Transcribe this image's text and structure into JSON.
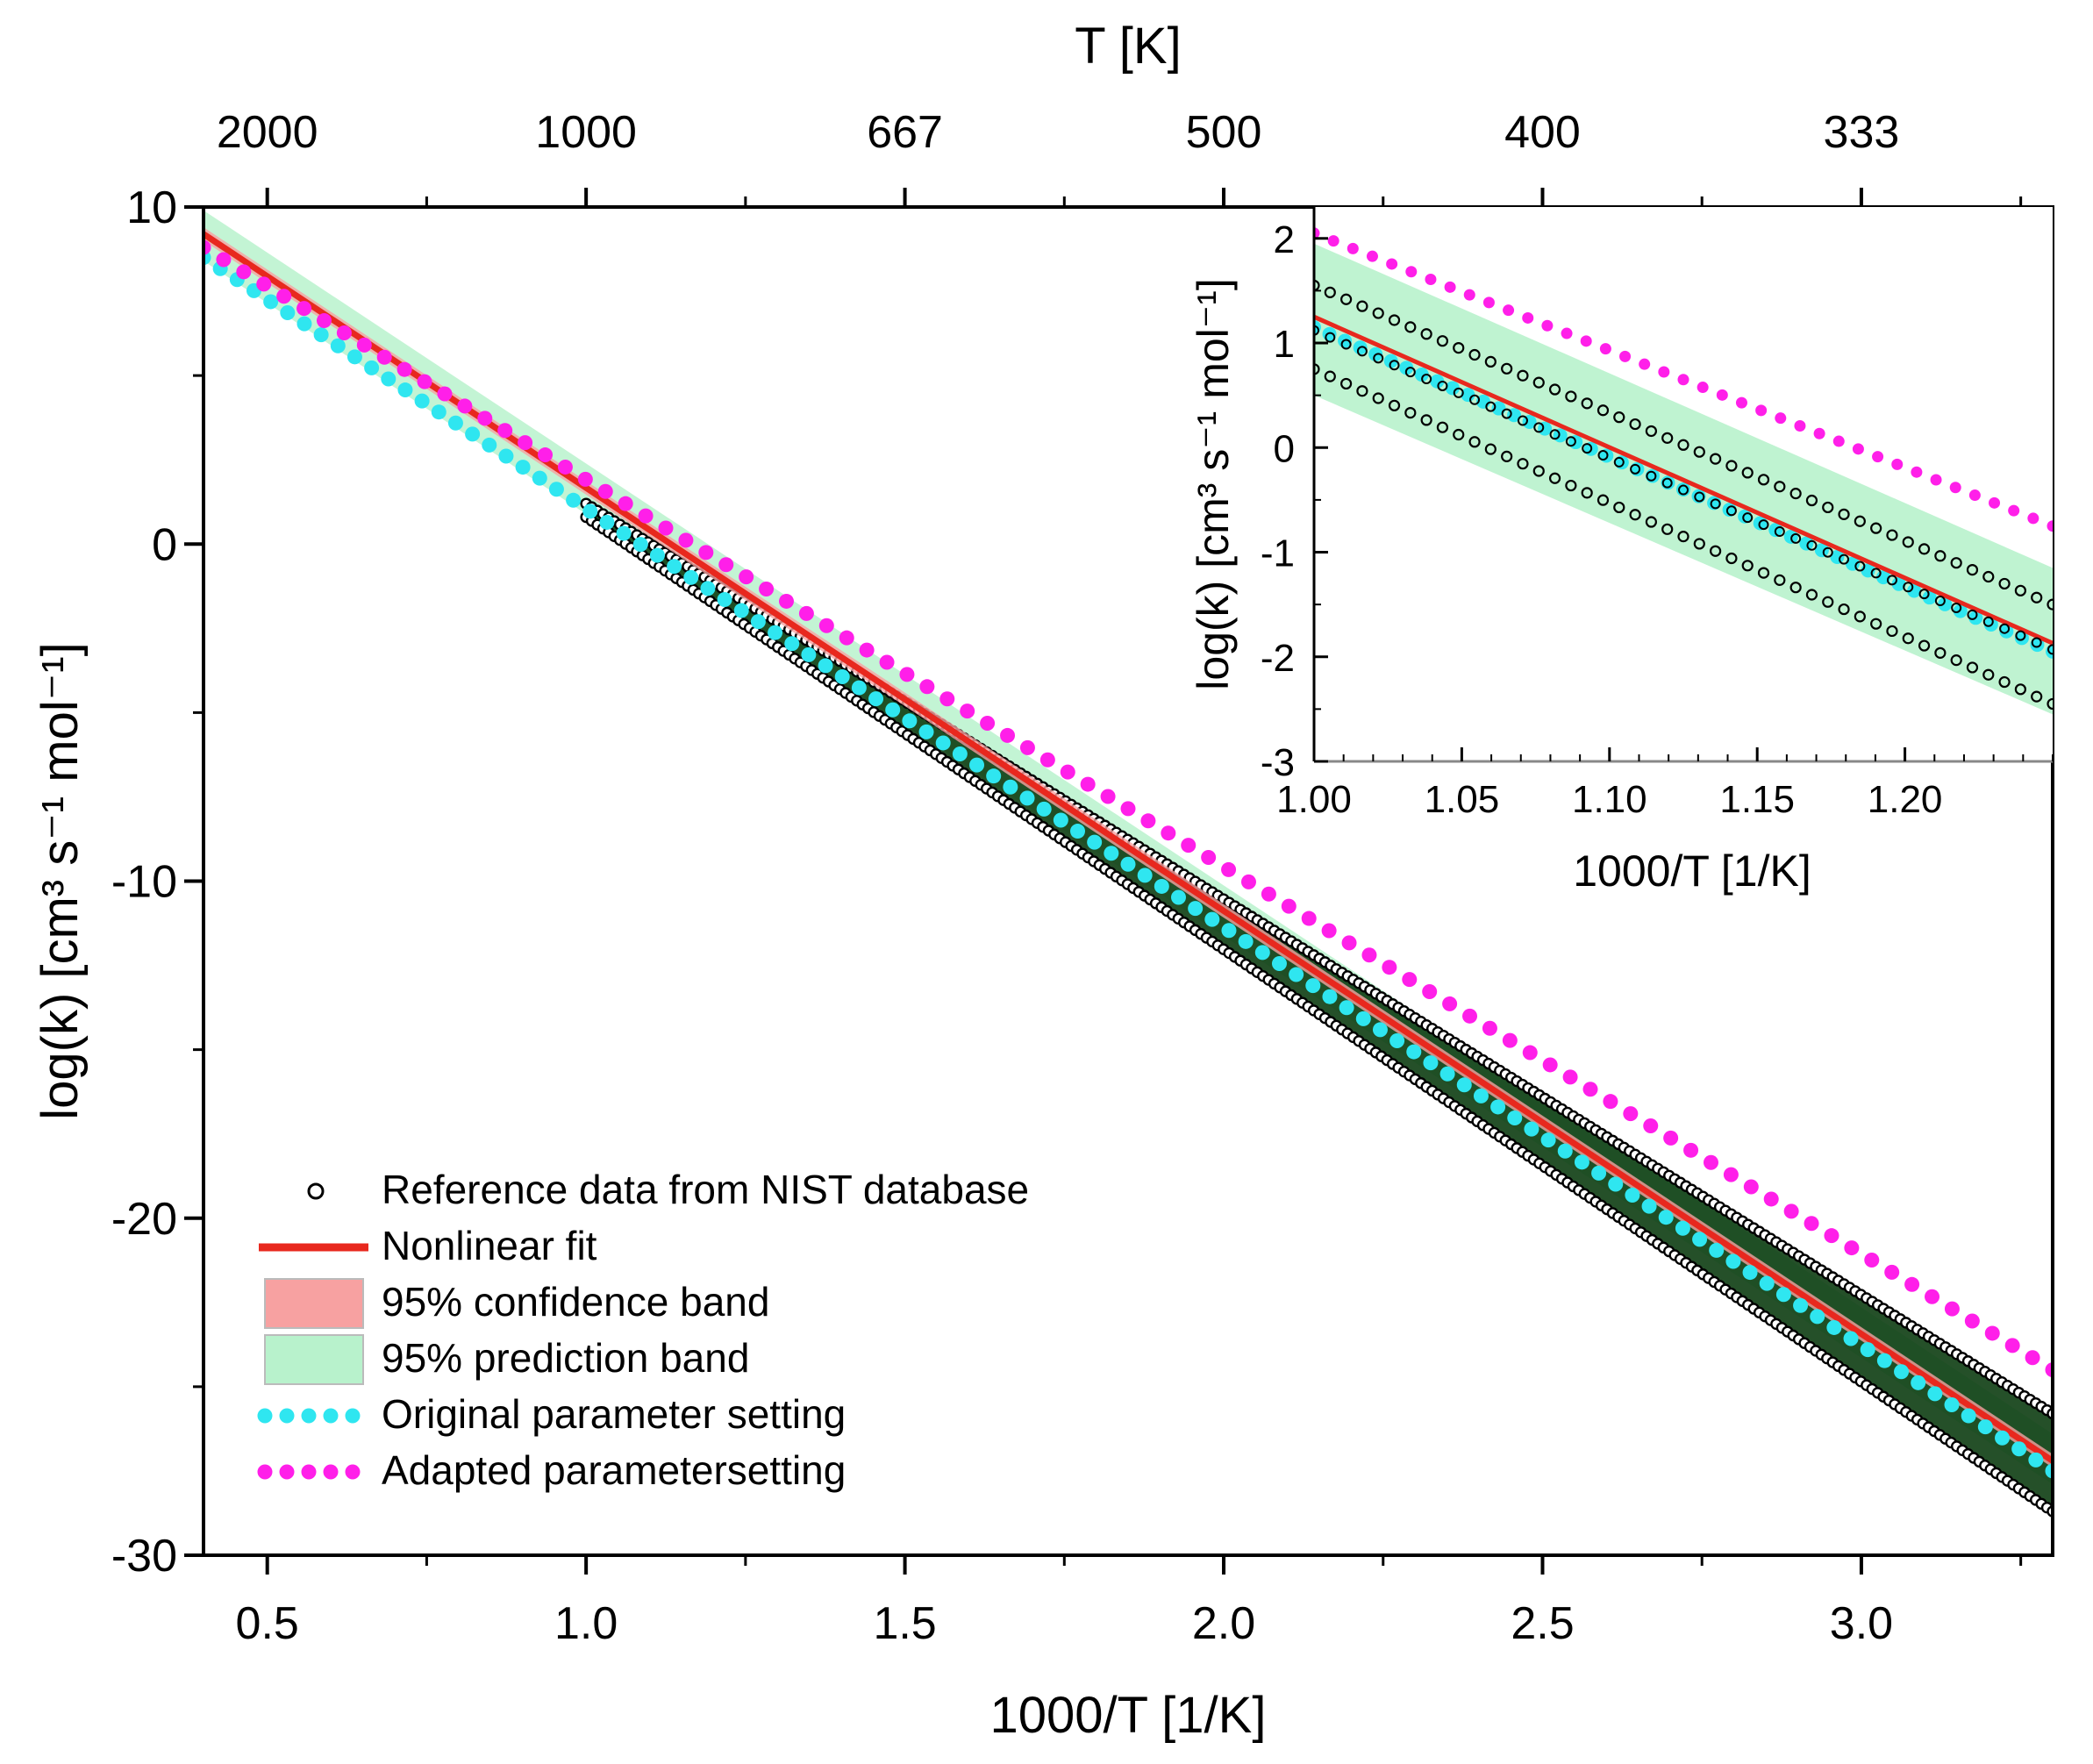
{
  "chart_data": [
    {
      "type": "line",
      "role": "main",
      "xlabel": "1000/T [1/K]",
      "ylabel": "log(k) [cm³ s⁻¹ mol⁻¹]",
      "top_xlabel": "T [K]",
      "xlim": [
        0.4,
        3.3
      ],
      "ylim": [
        -30,
        10
      ],
      "xticks": [
        0.5,
        1.0,
        1.5,
        2.0,
        2.5,
        3.0
      ],
      "xtick_labels": [
        "0.5",
        "1.0",
        "1.5",
        "2.0",
        "2.5",
        "3.0"
      ],
      "yticks": [
        -30,
        -20,
        -10,
        0,
        10
      ],
      "ytick_labels": [
        "-30",
        "-20",
        "-10",
        "0",
        "10"
      ],
      "top_ticks": [
        0.5,
        1.0,
        1.5,
        2.0,
        2.5,
        3.0
      ],
      "top_tick_labels": [
        "2000",
        "1000",
        "667",
        "500",
        "400",
        "333"
      ],
      "series": [
        {
          "name": "Reference data from NIST database",
          "style": "open-circles",
          "color": "#000000",
          "x": [
            1.0,
            3.3
          ],
          "y_upper": [
            1.2,
            -25.8
          ],
          "y_lower": [
            0.8,
            -28.7
          ]
        },
        {
          "name": "Nonlinear fit",
          "style": "line",
          "color": "#e8281e",
          "x": [
            0.4,
            3.3
          ],
          "y": [
            9.2,
            -27.2
          ]
        },
        {
          "name": "95% confidence band",
          "style": "band",
          "color": "#f7a1a1",
          "x": [
            0.4,
            3.3
          ],
          "y_lower": [
            9.0,
            -27.4
          ],
          "y_upper": [
            9.4,
            -27.0
          ]
        },
        {
          "name": "95% prediction band",
          "style": "band",
          "color": "#b8f2cc",
          "x": [
            0.4,
            3.3
          ],
          "y_lower": [
            8.4,
            -27.9
          ],
          "y_upper": [
            9.9,
            -26.4
          ]
        },
        {
          "name": "Original parameter setting",
          "style": "dots",
          "color": "#2fe6f0",
          "x": [
            0.4,
            3.3
          ],
          "y": [
            8.5,
            -27.5
          ]
        },
        {
          "name": "Adapted parametersetting",
          "style": "dots",
          "color": "#ff1fe9",
          "x": [
            0.4,
            3.3
          ],
          "y": [
            8.8,
            -24.5
          ]
        }
      ],
      "legend": {
        "position": "bottom-left",
        "items": [
          "Reference data from NIST database",
          "Nonlinear fit",
          "95% confidence band",
          "95% prediction band",
          "Original parameter setting",
          "Adapted parametersetting"
        ]
      }
    },
    {
      "type": "line",
      "role": "inset",
      "xlabel": "1000/T [1/K]",
      "ylabel": "log(k) [cm³ s⁻¹ mol⁻¹]",
      "xlim": [
        1.0,
        1.25
      ],
      "ylim": [
        -3,
        2.3
      ],
      "xticks": [
        1.0,
        1.05,
        1.1,
        1.15,
        1.2
      ],
      "xtick_labels": [
        "1.00",
        "1.05",
        "1.10",
        "1.15",
        "1.20"
      ],
      "yticks": [
        -3,
        -2,
        -1,
        0,
        1,
        2
      ],
      "ytick_labels": [
        "-3",
        "-2",
        "-1",
        "0",
        "1",
        "2"
      ],
      "series": [
        {
          "name": "NIST upper",
          "style": "open-circles",
          "color": "#000000",
          "x": [
            1.0,
            1.25
          ],
          "y": [
            1.55,
            -1.5
          ]
        },
        {
          "name": "NIST lower",
          "style": "open-circles",
          "color": "#000000",
          "x": [
            1.0,
            1.25
          ],
          "y": [
            0.75,
            -2.45
          ]
        },
        {
          "name": "Nonlinear fit",
          "style": "line",
          "color": "#e8281e",
          "x": [
            1.0,
            1.25
          ],
          "y": [
            1.25,
            -1.87
          ]
        },
        {
          "name": "95% prediction band",
          "style": "band",
          "color": "#b8f2cc",
          "x": [
            1.0,
            1.25
          ],
          "y_lower": [
            0.5,
            -2.55
          ],
          "y_upper": [
            1.95,
            -1.15
          ]
        },
        {
          "name": "Original parameter setting",
          "style": "dots",
          "color": "#2fe6f0",
          "x": [
            1.0,
            1.25
          ],
          "y": [
            1.15,
            -1.95
          ]
        },
        {
          "name": "Adapted parametersetting",
          "style": "dots",
          "color": "#ff1fe9",
          "x": [
            1.0,
            1.25
          ],
          "y": [
            2.05,
            -0.75
          ]
        }
      ]
    }
  ]
}
